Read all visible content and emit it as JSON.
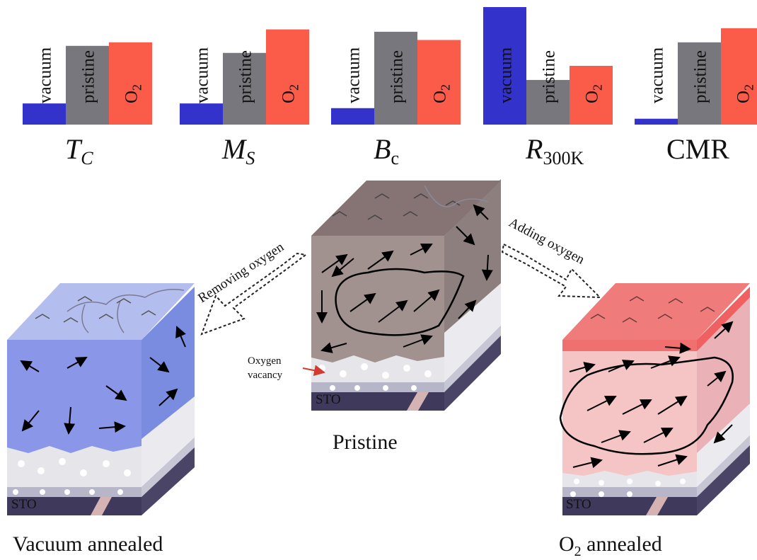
{
  "colors": {
    "vacuum": "#3333cc",
    "pristine": "#77777d",
    "o2": "#fb5b49",
    "vacuum_film": "#8a96e8",
    "pristine_film": "#a19290",
    "o2_film": "#f5c4c4",
    "substrate": "#4a4466"
  },
  "bar_labels": {
    "vacuum": "vacuum",
    "pristine": "pristine",
    "o2_base": "O",
    "o2_sub": "2"
  },
  "charts": [
    {
      "title": "T",
      "title_sub": "C",
      "values": {
        "vacuum": 0.18,
        "pristine": 0.67,
        "o2": 0.7
      }
    },
    {
      "title": "M",
      "title_sub": "S",
      "values": {
        "vacuum": 0.18,
        "pristine": 0.61,
        "o2": 0.81
      }
    },
    {
      "title": "B",
      "title_sub": "c",
      "values": {
        "vacuum": 0.14,
        "pristine": 0.79,
        "o2": 0.72
      }
    },
    {
      "title": "R",
      "title_sub": "300K",
      "values": {
        "vacuum": 1.0,
        "pristine": 0.38,
        "o2": 0.5
      }
    },
    {
      "title": "CMR",
      "title_sub": "",
      "values": {
        "vacuum": 0.05,
        "pristine": 0.7,
        "o2": 0.82
      }
    }
  ],
  "blocks": {
    "vacuum": {
      "caption": "Vacuum annealed",
      "substrate": "STO"
    },
    "pristine": {
      "caption": "Pristine",
      "substrate": "STO",
      "annotation_line1": "Oxygen",
      "annotation_line2": "vacancy"
    },
    "o2": {
      "caption_base": "O",
      "caption_sub": "2",
      "caption_rest": " annealed",
      "substrate": "STO"
    }
  },
  "transitions": {
    "removing": "Removing oxygen",
    "adding": "Adding oxygen"
  }
}
